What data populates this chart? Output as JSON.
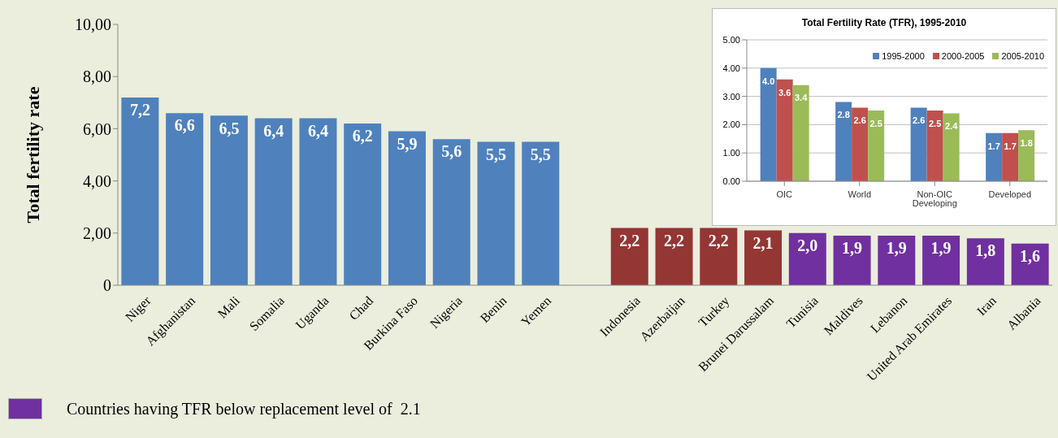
{
  "chart_data": [
    {
      "type": "bar",
      "ylabel": "Total fertility rate",
      "stacked": true,
      "categories": [
        "Niger",
        "Afghanistan",
        "Mali",
        "Somalia",
        "Uganda",
        "Chad",
        "Burkina Faso",
        "Nigeria",
        "Benin",
        "Yemen",
        null,
        "Indonesia",
        "Azerbaijan",
        "Turkey",
        "Brunei Darussalam",
        "Tunisia",
        "Maldives",
        "Lebanon",
        "United Arab Emirates",
        "Iran",
        "Albania"
      ],
      "series": [
        {
          "color": "#4f81bd",
          "values": [
            7.2,
            6.6,
            6.5,
            6.4,
            6.4,
            6.2,
            5.9,
            5.6,
            5.5,
            5.5,
            null,
            null,
            null,
            null,
            null,
            null,
            null,
            null,
            null,
            null,
            null
          ],
          "value_labels": [
            "7,2",
            "6,6",
            "6,5",
            "6,4",
            "6,4",
            "6,2",
            "5,9",
            "5,6",
            "5,5",
            "5,5",
            null,
            null,
            null,
            null,
            null,
            null,
            null,
            null,
            null,
            null,
            null
          ]
        },
        {
          "color": "#943634",
          "values": [
            null,
            null,
            null,
            null,
            null,
            null,
            null,
            null,
            null,
            null,
            null,
            2.2,
            2.2,
            2.2,
            2.1,
            null,
            null,
            null,
            null,
            null,
            null
          ],
          "value_labels": [
            null,
            null,
            null,
            null,
            null,
            null,
            null,
            null,
            null,
            null,
            null,
            "2,2",
            "2,2",
            "2,2",
            "2,1",
            null,
            null,
            null,
            null,
            null,
            null
          ]
        },
        {
          "name": "Countries having TFR below replacement level of  2.1",
          "color": "#7030a0",
          "values": [
            null,
            null,
            null,
            null,
            null,
            null,
            null,
            null,
            null,
            null,
            null,
            null,
            null,
            null,
            null,
            2.0,
            1.9,
            1.9,
            1.9,
            1.8,
            1.6
          ],
          "value_labels": [
            null,
            null,
            null,
            null,
            null,
            null,
            null,
            null,
            null,
            null,
            null,
            null,
            null,
            null,
            null,
            "2,0",
            "1,9",
            "1,9",
            "1,9",
            "1,8",
            "1,6"
          ]
        }
      ],
      "ylim": [
        0,
        10
      ],
      "yticks": [
        0,
        {
          "value": 2,
          "label": "2,00"
        },
        {
          "value": 4,
          "label": "4,00"
        },
        {
          "value": 6,
          "label": "6,00"
        },
        {
          "value": 8,
          "label": "8,00"
        },
        {
          "value": 10,
          "label": "10,00"
        }
      ],
      "grid": false,
      "legend": "bottom left"
    },
    {
      "type": "bar",
      "title": "Total Fertility Rate (TFR), 1995-2010",
      "categories": [
        "OIC",
        "World",
        "Non-OIC Developing",
        "Developed"
      ],
      "series": [
        {
          "name": "1995-2000",
          "color": "#4f81bd",
          "values": [
            4.0,
            2.8,
            2.6,
            1.7
          ],
          "value_labels": [
            "4.0",
            "2.8",
            "2.6",
            "1.7"
          ]
        },
        {
          "name": "2000-2005",
          "color": "#c0504d",
          "values": [
            3.6,
            2.6,
            2.5,
            1.7
          ],
          "value_labels": [
            "3.6",
            "2.6",
            "2.5",
            "1.7"
          ]
        },
        {
          "name": "2005-2010",
          "color": "#9bbb59",
          "values": [
            3.4,
            2.5,
            2.4,
            1.8
          ],
          "value_labels": [
            "3.4",
            "2.5",
            "2.4",
            "1.8"
          ]
        }
      ],
      "ylim": [
        0,
        5
      ],
      "yticks": [
        {
          "value": 0,
          "label": "0.00"
        },
        {
          "value": 1,
          "label": "1.00"
        },
        {
          "value": 2,
          "label": "2.00"
        },
        {
          "value": 3,
          "label": "3.00"
        },
        {
          "value": 4,
          "label": "4.00"
        },
        {
          "value": 5,
          "label": "5.00"
        }
      ],
      "grid": "y",
      "legend": "top right"
    }
  ]
}
